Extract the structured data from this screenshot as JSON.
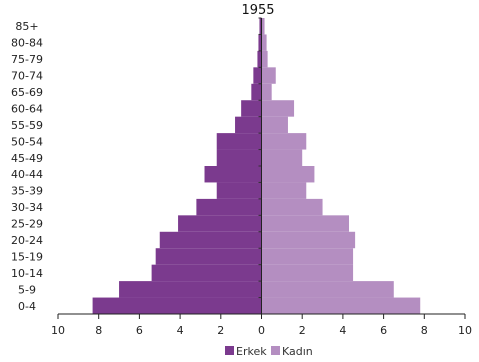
{
  "chart_data": {
    "type": "bar",
    "orientation": "horizontal-population-pyramid",
    "title": "1955",
    "categories": [
      "0-4",
      "5-9",
      "10-14",
      "15-19",
      "20-24",
      "25-29",
      "30-34",
      "35-39",
      "40-44",
      "45-49",
      "50-54",
      "55-59",
      "60-64",
      "65-69",
      "70-74",
      "75-79",
      "80-84",
      "85+"
    ],
    "series": [
      {
        "name": "Erkek",
        "color": "#7b3a8e",
        "values": [
          8.3,
          7.0,
          5.4,
          5.2,
          5.0,
          4.1,
          3.2,
          2.2,
          2.8,
          2.2,
          2.2,
          1.3,
          1.0,
          0.5,
          0.4,
          0.2,
          0.15,
          0.1
        ]
      },
      {
        "name": "Kadın",
        "color": "#b48ec1",
        "values": [
          7.8,
          6.5,
          4.5,
          4.5,
          4.6,
          4.3,
          3.0,
          2.2,
          2.6,
          2.0,
          2.2,
          1.3,
          1.6,
          0.5,
          0.7,
          0.3,
          0.25,
          0.15
        ]
      }
    ],
    "xlim": [
      -10,
      10
    ],
    "x_ticks": [
      10,
      8,
      6,
      4,
      2,
      0,
      2,
      4,
      6,
      8,
      10
    ],
    "grid": false,
    "legend_position": "bottom"
  }
}
